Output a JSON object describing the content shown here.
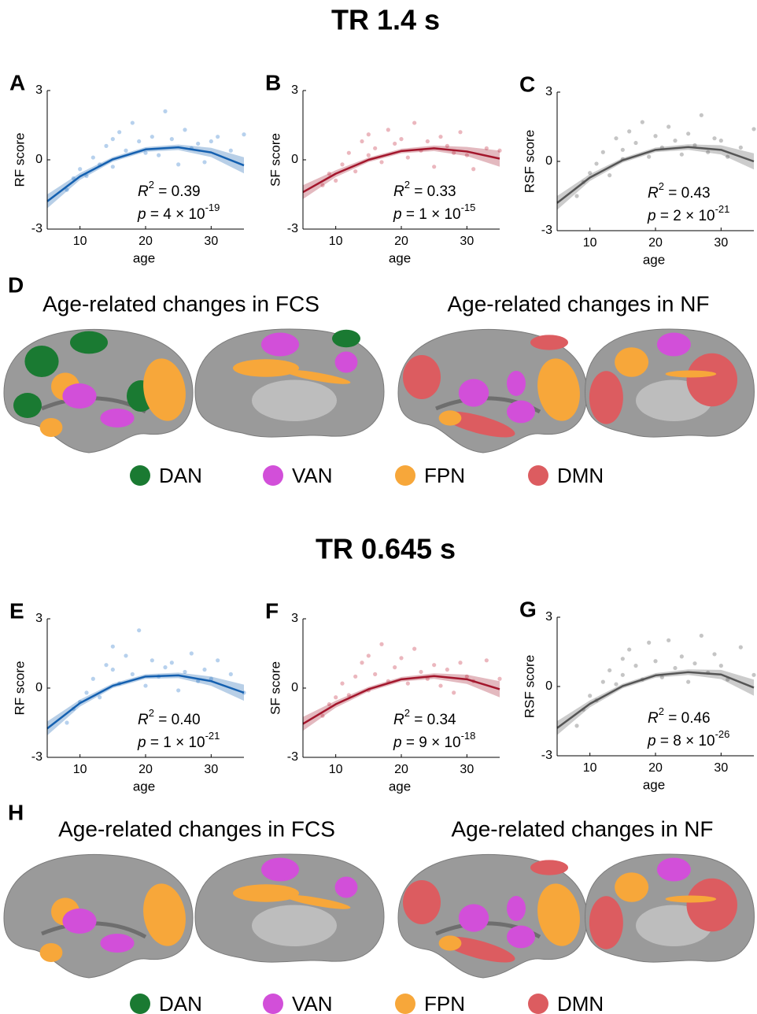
{
  "chart_data": [
    {
      "type": "scatter",
      "panel": "A",
      "xlabel": "age",
      "ylabel": "RF score",
      "xlim": [
        5,
        35
      ],
      "ylim": [
        -3,
        3
      ],
      "xticks": [
        10,
        20,
        30
      ],
      "yticks": [
        -3,
        0,
        3
      ],
      "color": "#6fa3dc",
      "x": [
        8,
        9,
        10,
        11,
        12,
        13,
        14,
        15,
        15,
        16,
        17,
        18,
        19,
        20,
        21,
        22,
        23,
        24,
        25,
        26,
        27,
        28,
        29,
        30,
        31,
        33,
        35
      ],
      "y": [
        -1.3,
        -0.8,
        -0.4,
        -0.7,
        0.1,
        -0.2,
        0.6,
        0.9,
        -0.3,
        1.2,
        0.4,
        1.6,
        0.8,
        0.3,
        1.0,
        0.2,
        2.1,
        0.9,
        -0.2,
        1.3,
        0.5,
        0.7,
        -0.1,
        0.8,
        1.0,
        0.4,
        1.1
      ],
      "fit": {
        "color": "#1460b0",
        "x": [
          5,
          10,
          15,
          20,
          25,
          30,
          35
        ],
        "y": [
          -1.8,
          -0.72,
          0.02,
          0.45,
          0.54,
          0.32,
          -0.24
        ],
        "lower": [
          -2.1,
          -0.87,
          -0.08,
          0.35,
          0.42,
          0.12,
          -0.59
        ],
        "upper": [
          -1.5,
          -0.57,
          0.12,
          0.55,
          0.66,
          0.52,
          0.11
        ]
      },
      "annotation": {
        "r_symbol": "R",
        "r_sup": "2",
        "r_text": " = 0.39",
        "p_symbol": "p",
        "p_text": " = 4 × 10",
        "p_sup": "-19"
      }
    },
    {
      "type": "scatter",
      "panel": "B",
      "xlabel": "age",
      "ylabel": "SF score",
      "xlim": [
        5,
        35
      ],
      "ylim": [
        -3,
        3
      ],
      "xticks": [
        10,
        20,
        30
      ],
      "yticks": [
        -3,
        0,
        3
      ],
      "color": "#d7707e",
      "x": [
        8,
        9,
        10,
        11,
        12,
        13,
        14,
        15,
        15,
        16,
        17,
        18,
        19,
        20,
        21,
        22,
        23,
        24,
        25,
        26,
        27,
        28,
        29,
        30,
        31,
        33,
        35
      ],
      "y": [
        -1.1,
        -0.6,
        -0.9,
        -0.2,
        0.3,
        -0.5,
        0.8,
        0.2,
        1.1,
        0.5,
        -0.1,
        1.3,
        0.7,
        0.9,
        0.1,
        1.6,
        0.4,
        0.8,
        -0.3,
        1.0,
        0.6,
        0.3,
        1.2,
        0.2,
        -0.4,
        0.5,
        0.4
      ],
      "fit": {
        "color": "#a3162c",
        "x": [
          5,
          10,
          15,
          20,
          25,
          30,
          35
        ],
        "y": [
          -1.4,
          -0.6,
          0.0,
          0.38,
          0.5,
          0.36,
          0.05
        ],
        "lower": [
          -1.7,
          -0.75,
          -0.1,
          0.28,
          0.38,
          0.16,
          -0.3
        ],
        "upper": [
          -1.1,
          -0.45,
          0.1,
          0.48,
          0.62,
          0.56,
          0.4
        ]
      },
      "annotation": {
        "r_symbol": "R",
        "r_sup": "2",
        "r_text": " = 0.33",
        "p_symbol": "p",
        "p_text": " = 1 × 10",
        "p_sup": "-15"
      }
    },
    {
      "type": "scatter",
      "panel": "C",
      "xlabel": "age",
      "ylabel": "RSF score",
      "xlim": [
        5,
        35
      ],
      "ylim": [
        -3,
        3
      ],
      "xticks": [
        10,
        20,
        30
      ],
      "yticks": [
        -3,
        0,
        3
      ],
      "color": "#8c8c8c",
      "x": [
        8,
        9,
        10,
        11,
        12,
        13,
        14,
        15,
        15,
        16,
        17,
        18,
        19,
        20,
        21,
        22,
        23,
        24,
        25,
        26,
        27,
        28,
        29,
        30,
        31,
        33,
        35
      ],
      "y": [
        -1.5,
        -0.9,
        -0.5,
        -0.1,
        0.4,
        -0.6,
        1.0,
        0.5,
        0.1,
        1.3,
        0.8,
        1.7,
        0.2,
        1.1,
        0.6,
        1.5,
        0.9,
        0.3,
        1.2,
        0.7,
        2.0,
        0.4,
        1.0,
        0.9,
        0.2,
        0.6,
        1.4
      ],
      "fit": {
        "color": "#555555",
        "x": [
          5,
          10,
          15,
          20,
          25,
          30,
          35
        ],
        "y": [
          -1.8,
          -0.7,
          0.05,
          0.5,
          0.62,
          0.5,
          0.0
        ],
        "lower": [
          -2.1,
          -0.85,
          -0.05,
          0.4,
          0.5,
          0.3,
          -0.35
        ],
        "upper": [
          -1.5,
          -0.55,
          0.15,
          0.6,
          0.74,
          0.7,
          0.35
        ]
      },
      "annotation": {
        "r_symbol": "R",
        "r_sup": "2",
        "r_text": " = 0.43",
        "p_symbol": "p",
        "p_text": " = 2 × 10",
        "p_sup": "-21"
      }
    },
    {
      "type": "scatter",
      "panel": "E",
      "xlabel": "age",
      "ylabel": "RF score",
      "xlim": [
        5,
        35
      ],
      "ylim": [
        -3,
        3
      ],
      "xticks": [
        10,
        20,
        30
      ],
      "yticks": [
        -3,
        0,
        3
      ],
      "color": "#6fa3dc",
      "x": [
        8,
        9,
        10,
        11,
        12,
        13,
        14,
        15,
        15,
        16,
        17,
        18,
        19,
        20,
        21,
        22,
        23,
        24,
        25,
        26,
        27,
        28,
        29,
        30,
        31,
        33,
        35
      ],
      "y": [
        -1.5,
        -0.9,
        -0.6,
        -0.2,
        0.4,
        -0.4,
        1.0,
        0.8,
        1.8,
        0.2,
        1.4,
        0.6,
        2.5,
        0.1,
        1.2,
        0.5,
        0.9,
        1.1,
        -0.1,
        0.7,
        1.5,
        0.3,
        0.8,
        0.4,
        1.2,
        0.6,
        -0.2
      ],
      "fit": {
        "color": "#1460b0",
        "x": [
          5,
          10,
          15,
          20,
          25,
          30,
          35
        ],
        "y": [
          -1.75,
          -0.65,
          0.1,
          0.5,
          0.55,
          0.3,
          -0.2
        ],
        "lower": [
          -2.05,
          -0.8,
          0.0,
          0.4,
          0.43,
          0.1,
          -0.55
        ],
        "upper": [
          -1.45,
          -0.5,
          0.2,
          0.6,
          0.67,
          0.5,
          0.15
        ]
      },
      "annotation": {
        "r_symbol": "R",
        "r_sup": "2",
        "r_text": " = 0.40",
        "p_symbol": "p",
        "p_text": " = 1 × 10",
        "p_sup": "-21"
      }
    },
    {
      "type": "scatter",
      "panel": "F",
      "xlabel": "age",
      "ylabel": "SF score",
      "xlim": [
        5,
        35
      ],
      "ylim": [
        -3,
        3
      ],
      "xticks": [
        10,
        20,
        30
      ],
      "yticks": [
        -3,
        0,
        3
      ],
      "color": "#d7707e",
      "x": [
        8,
        9,
        10,
        11,
        12,
        13,
        14,
        15,
        15,
        16,
        17,
        18,
        19,
        20,
        21,
        22,
        23,
        24,
        25,
        26,
        27,
        28,
        29,
        30,
        31,
        33,
        35
      ],
      "y": [
        -1.2,
        -0.7,
        -0.4,
        0.2,
        -0.3,
        0.5,
        1.1,
        -0.1,
        1.4,
        0.6,
        1.9,
        0.3,
        0.9,
        1.3,
        0.2,
        1.7,
        0.7,
        0.4,
        1.0,
        0.1,
        0.8,
        -0.2,
        1.1,
        0.5,
        0.3,
        1.2,
        0.4
      ],
      "fit": {
        "color": "#a3162c",
        "x": [
          5,
          10,
          15,
          20,
          25,
          30,
          35
        ],
        "y": [
          -1.55,
          -0.7,
          -0.05,
          0.38,
          0.52,
          0.38,
          -0.05
        ],
        "lower": [
          -1.85,
          -0.85,
          -0.15,
          0.28,
          0.4,
          0.18,
          -0.4
        ],
        "upper": [
          -1.25,
          -0.55,
          0.05,
          0.48,
          0.64,
          0.58,
          0.3
        ]
      },
      "annotation": {
        "r_symbol": "R",
        "r_sup": "2",
        "r_text": " = 0.34",
        "p_symbol": "p",
        "p_text": " = 9 × 10",
        "p_sup": "-18"
      }
    },
    {
      "type": "scatter",
      "panel": "G",
      "xlabel": "age",
      "ylabel": "RSF score",
      "xlim": [
        5,
        35
      ],
      "ylim": [
        -3,
        3
      ],
      "xticks": [
        10,
        20,
        30
      ],
      "yticks": [
        -3,
        0,
        3
      ],
      "color": "#8c8c8c",
      "x": [
        8,
        9,
        10,
        11,
        12,
        13,
        14,
        15,
        15,
        16,
        17,
        18,
        19,
        20,
        21,
        22,
        23,
        24,
        25,
        26,
        27,
        28,
        29,
        30,
        31,
        33,
        35
      ],
      "y": [
        -1.7,
        -1.0,
        -0.4,
        -0.6,
        0.2,
        0.7,
        0.1,
        1.2,
        0.5,
        1.6,
        0.9,
        0.3,
        1.9,
        1.1,
        0.4,
        2.0,
        0.8,
        1.3,
        0.2,
        1.0,
        2.2,
        0.6,
        1.4,
        0.9,
        0.3,
        1.7,
        0.5
      ],
      "fit": {
        "color": "#555555",
        "x": [
          5,
          10,
          15,
          20,
          25,
          30,
          35
        ],
        "y": [
          -1.8,
          -0.75,
          0.02,
          0.48,
          0.62,
          0.52,
          -0.05
        ],
        "lower": [
          -2.1,
          -0.9,
          -0.08,
          0.38,
          0.5,
          0.32,
          -0.4
        ],
        "upper": [
          -1.5,
          -0.6,
          0.12,
          0.58,
          0.74,
          0.72,
          0.3
        ]
      },
      "annotation": {
        "r_symbol": "R",
        "r_sup": "2",
        "r_text": " = 0.46",
        "p_symbol": "p",
        "p_text": " = 8 × 10",
        "p_sup": "-26"
      }
    }
  ],
  "sections": [
    {
      "title": "TR 1.4 s",
      "map_panel": "D",
      "map_titles": [
        "Age-related changes in FCS",
        "Age-related changes in NF"
      ],
      "legend": [
        {
          "name": "DAN",
          "color": "#1a7a32"
        },
        {
          "name": "VAN",
          "color": "#d24fd9"
        },
        {
          "name": "FPN",
          "color": "#f7a73a"
        },
        {
          "name": "DMN",
          "color": "#dc5c60"
        }
      ]
    },
    {
      "title": "TR 0.645 s",
      "map_panel": "H",
      "map_titles": [
        "Age-related changes in FCS",
        "Age-related changes in NF"
      ],
      "legend": [
        {
          "name": "DAN",
          "color": "#1a7a32"
        },
        {
          "name": "VAN",
          "color": "#d24fd9"
        },
        {
          "name": "FPN",
          "color": "#f7a73a"
        },
        {
          "name": "DMN",
          "color": "#dc5c60"
        }
      ]
    }
  ]
}
